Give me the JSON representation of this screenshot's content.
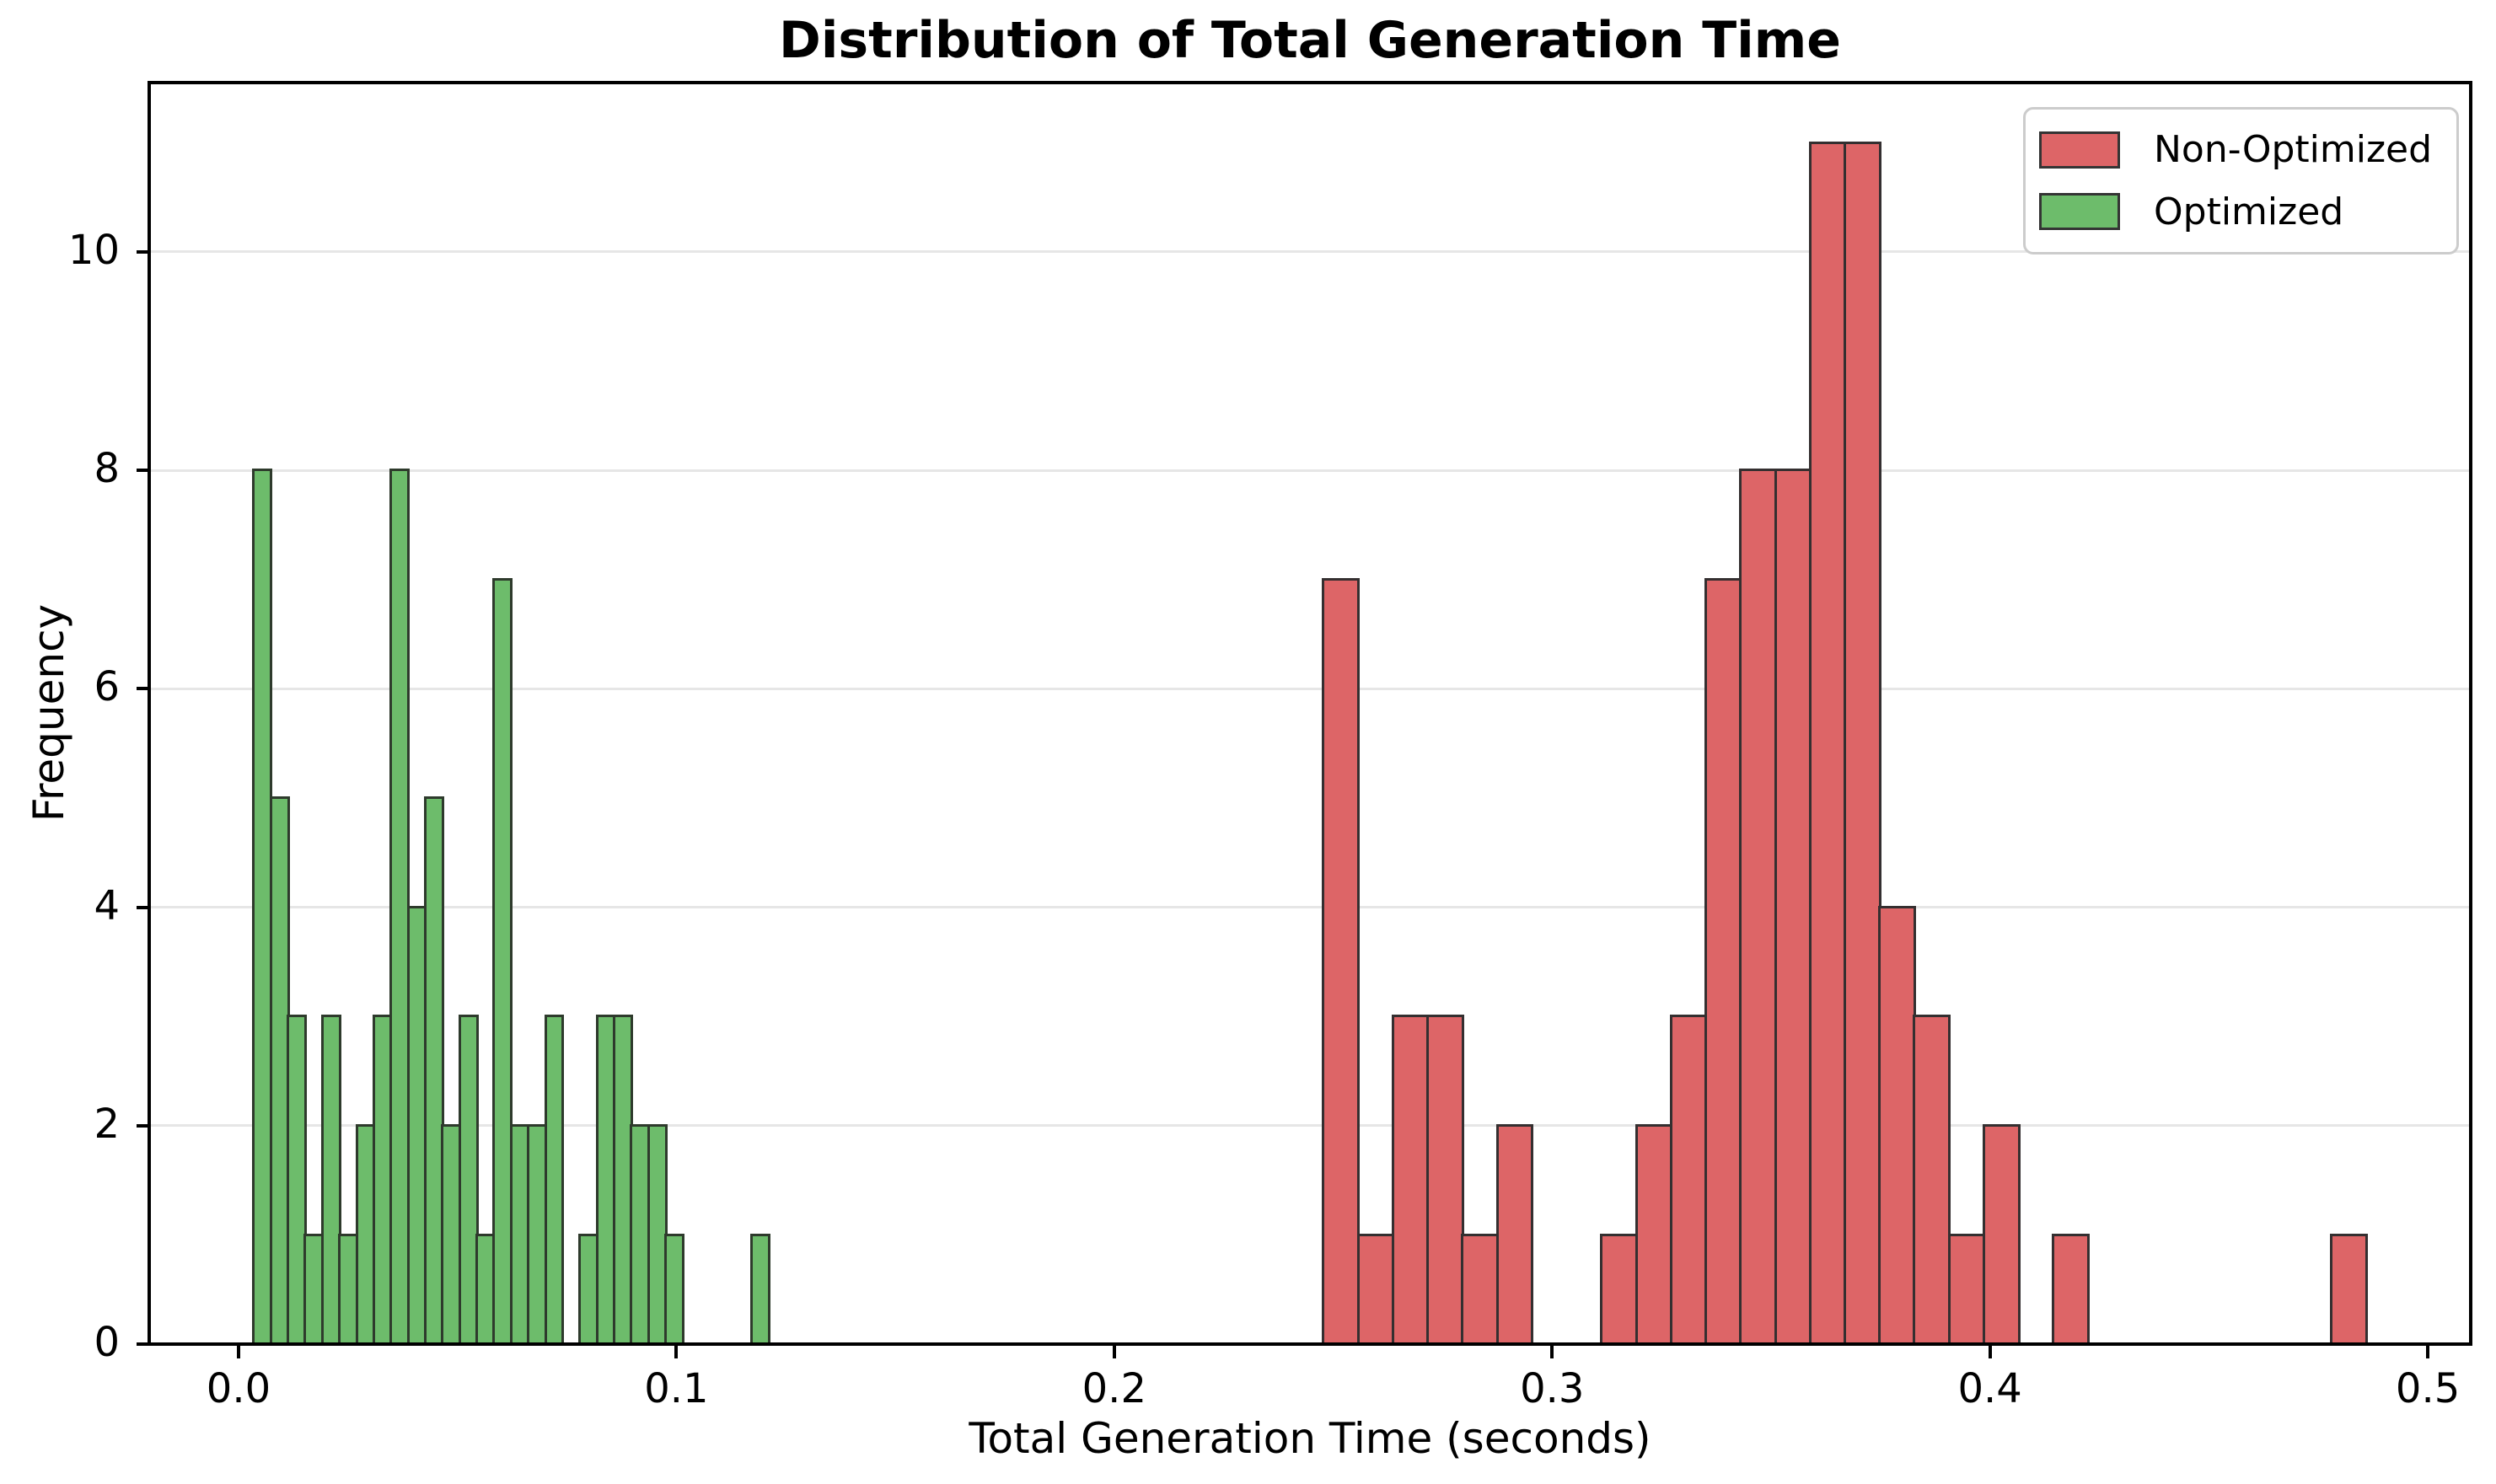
{
  "chart_data": {
    "type": "histogram",
    "title": "Distribution of Total Generation Time",
    "xlabel": "Total Generation Time (seconds)",
    "ylabel": "Frequency",
    "xlim": [
      -0.0204,
      0.5098
    ],
    "ylim": [
      0,
      11.55
    ],
    "xticks": [
      0.0,
      0.1,
      0.2,
      0.3,
      0.4,
      0.5
    ],
    "xtick_labels": [
      "0.0",
      "0.1",
      "0.2",
      "0.3",
      "0.4",
      "0.5"
    ],
    "yticks": [
      0,
      2,
      4,
      6,
      8,
      10
    ],
    "ytick_labels": [
      "0",
      "2",
      "4",
      "6",
      "8",
      "10"
    ],
    "grid": "horizontal-only",
    "grid_color": "#e6e6e6",
    "legend_position": "upper-right",
    "background": "#ffffff",
    "series": [
      {
        "name": "Non-Optimized",
        "fill": "#dd6567",
        "edge": "#342f30",
        "bin_start": 0.2478,
        "bin_width": 0.00794,
        "counts": [
          7,
          1,
          3,
          3,
          1,
          2,
          0,
          0,
          1,
          2,
          3,
          7,
          8,
          8,
          11,
          11,
          4,
          3,
          1,
          2,
          0,
          1,
          0,
          0,
          0,
          0,
          0,
          0,
          0,
          1
        ]
      },
      {
        "name": "Optimized",
        "fill": "#6dbc6b",
        "edge": "#2e3a2c",
        "bin_start": 0.0035,
        "bin_width": 0.00392,
        "counts": [
          8,
          5,
          3,
          1,
          3,
          1,
          2,
          3,
          8,
          4,
          5,
          2,
          3,
          1,
          7,
          2,
          2,
          3,
          0,
          1,
          3,
          3,
          2,
          2,
          1,
          0,
          0,
          0,
          0,
          1
        ]
      }
    ]
  }
}
